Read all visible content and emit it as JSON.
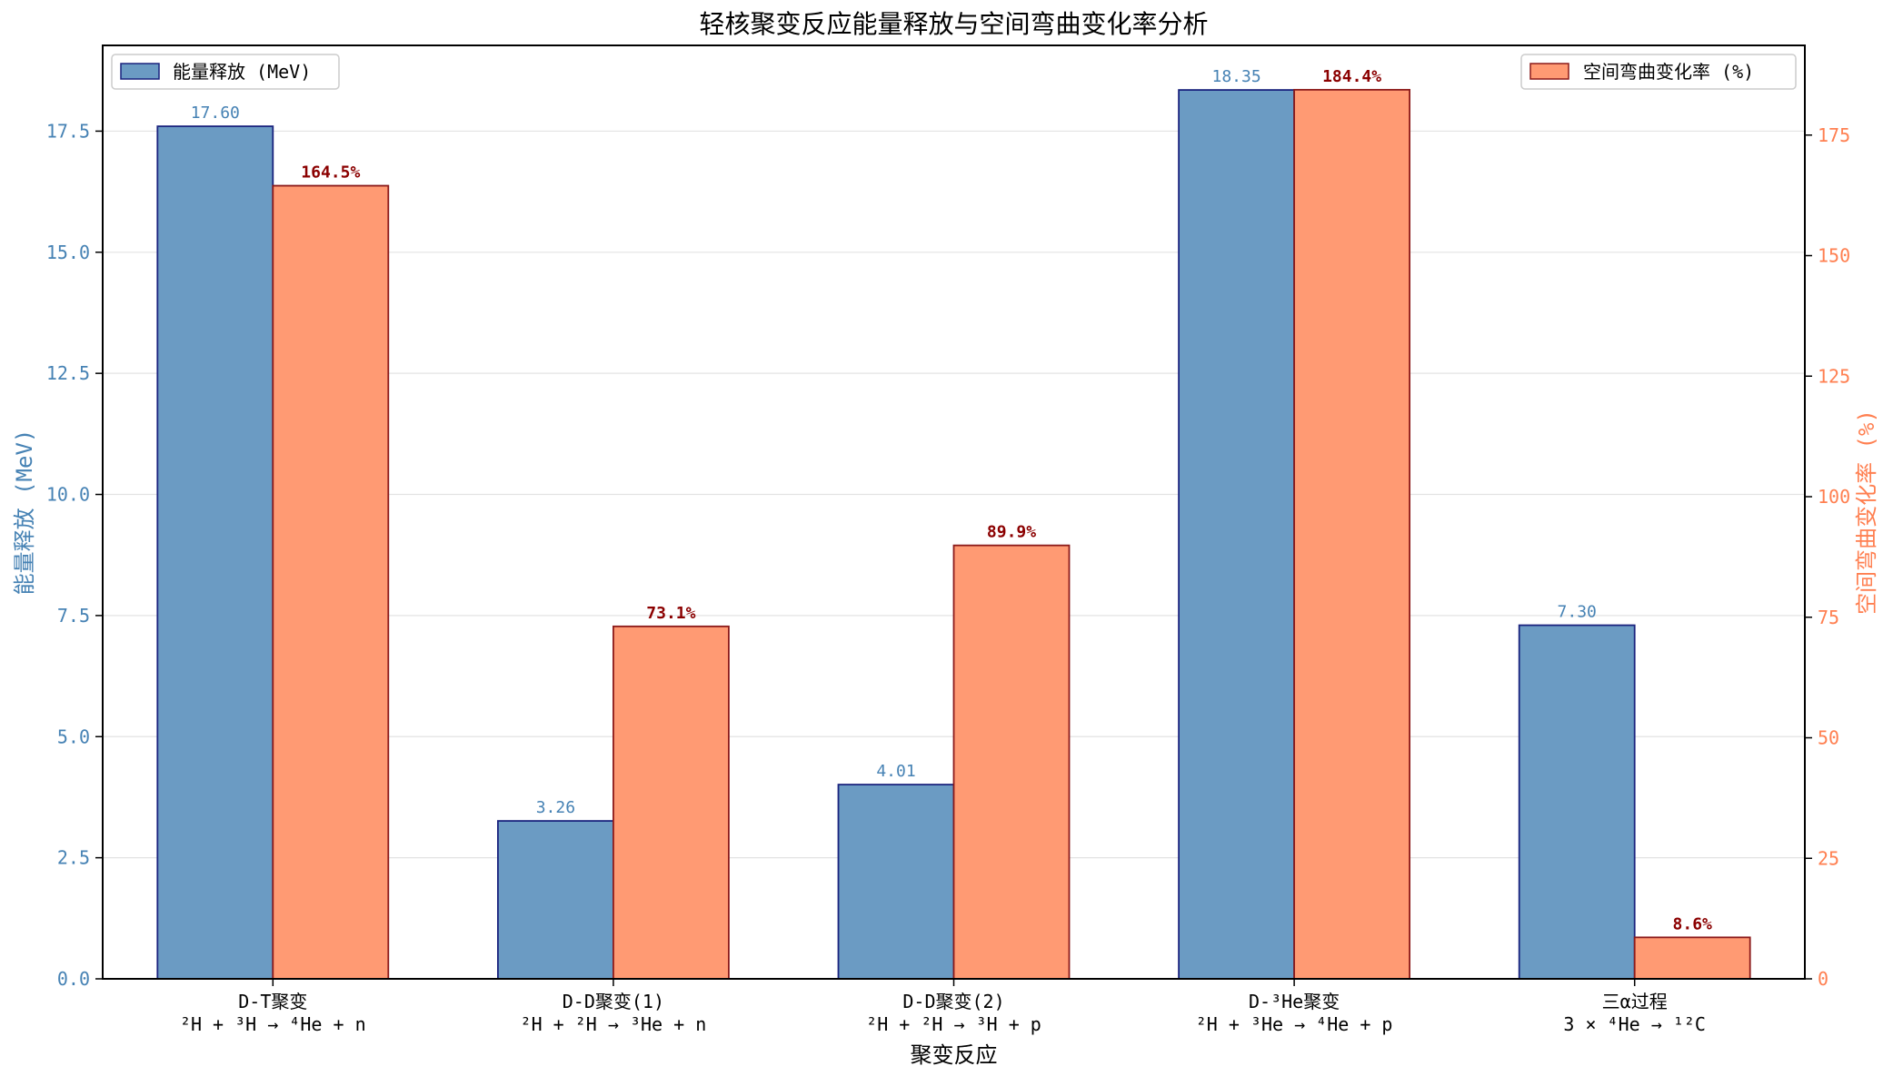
{
  "chart_data": {
    "type": "bar",
    "title": "轻核聚变反应能量释放与空间弯曲变化率分析",
    "xlabel": "聚变反应",
    "ylabel_left": "能量释放 (MeV)",
    "ylabel_right": "空间弯曲变化率 (%)",
    "ylim_left": [
      0,
      19.27
    ],
    "ylim_right": [
      0,
      193.6
    ],
    "yticks_left": [
      "0.0",
      "2.5",
      "5.0",
      "7.5",
      "10.0",
      "12.5",
      "15.0",
      "17.5"
    ],
    "yticks_right": [
      "0",
      "25",
      "50",
      "75",
      "100",
      "125",
      "150",
      "175"
    ],
    "grid": "horizontal",
    "categories": [
      {
        "name": "D-T聚变",
        "equation": "²H + ³H → ⁴He + n"
      },
      {
        "name": "D-D聚变(1)",
        "equation": "²H + ²H → ³He + n"
      },
      {
        "name": "D-D聚变(2)",
        "equation": "²H + ²H → ³H + p"
      },
      {
        "name": "D-³He聚变",
        "equation": "²H + ³He → ⁴He + p"
      },
      {
        "name": "三α过程",
        "equation": "3 × ⁴He → ¹²C"
      }
    ],
    "series": [
      {
        "name": "能量释放 (MeV)",
        "axis": "left",
        "values": [
          17.6,
          3.26,
          4.01,
          18.35,
          7.3
        ],
        "labels": [
          "17.60",
          "3.26",
          "4.01",
          "18.35",
          "7.30"
        ],
        "legend_position": "top-left"
      },
      {
        "name": "空间弯曲变化率 (%)",
        "axis": "right",
        "values": [
          164.5,
          73.1,
          89.9,
          184.4,
          8.6
        ],
        "labels": [
          "164.5%",
          "73.1%",
          "89.9%",
          "184.4%",
          "8.6%"
        ],
        "legend_position": "top-right"
      }
    ],
    "colors": {
      "left_bar": "#6b9bc3",
      "left_edge": "#1a237e",
      "left_text": "#4682b4",
      "right_bar": "#ff9a73",
      "right_edge": "#8b1a1a",
      "right_text": "#ff7f50",
      "right_label": "#8b0000"
    }
  }
}
